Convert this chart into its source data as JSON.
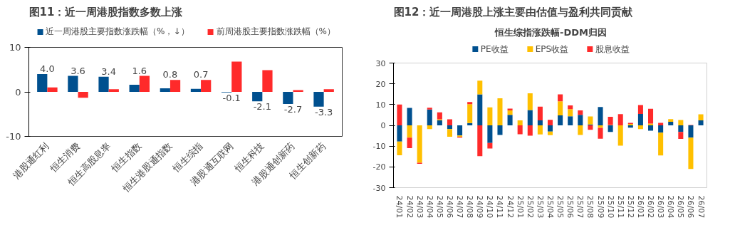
{
  "chart_data": [
    {
      "type": "bar",
      "title": "图11：近一周港股指数多数上涨",
      "categories": [
        "港股通红利",
        "恒生消费",
        "恒生高股息率",
        "恒生指数",
        "恒生港股通指数",
        "恒生综指",
        "港股通互联网",
        "恒生科技",
        "港股通创新药",
        "恒生创新药"
      ],
      "series": [
        {
          "name": "近一周港股主要指数涨跌幅（%，↓）",
          "color": "#00508f",
          "values": [
            4.0,
            3.6,
            3.4,
            1.6,
            0.8,
            0.7,
            -0.1,
            -2.1,
            -2.7,
            -3.3
          ],
          "value_labels": [
            "4.0",
            "3.6",
            "3.4",
            "1.6",
            "0.8",
            "0.7",
            "-0.1",
            "-2.1",
            "-2.7",
            "-3.3"
          ]
        },
        {
          "name": "前周港股主要指数涨跌幅（%）",
          "color": "#ff2a2a",
          "values": [
            1.0,
            -1.3,
            0.6,
            3.6,
            2.7,
            2.7,
            6.8,
            4.9,
            0.4,
            0.6
          ]
        }
      ],
      "ylim": [
        -10,
        10
      ],
      "yticks": [
        -10,
        0,
        10
      ],
      "grid": false,
      "legend": "top"
    },
    {
      "type": "bar",
      "stacked": true,
      "title": "图12：近一周港股上涨主要由估值与盈利共同贡献",
      "subtitle": "恒生综指涨跌幅-DDM归因",
      "categories": [
        "24/01",
        "24/02",
        "24/03",
        "24/04",
        "24/05",
        "24/06",
        "24/07",
        "24/08",
        "24/09",
        "24/10",
        "24/11",
        "24/12",
        "25/01",
        "25/02",
        "25/03",
        "25/04",
        "25/05",
        "25/06",
        "25/07",
        "25/08",
        "25/09",
        "25/10",
        "25/11",
        "25/12",
        "26/01",
        "26/02",
        "26/03",
        "26/04",
        "26/05",
        "26/06",
        "26/07"
      ],
      "series": [
        {
          "name": "PE收益",
          "color": "#00508f",
          "values": [
            -7.8,
            8.4,
            0,
            7.6,
            2.4,
            -1.8,
            -4.9,
            1.1,
            14.9,
            -8.5,
            -4.6,
            5.1,
            0,
            7.4,
            2.4,
            -3.0,
            4.8,
            4.4,
            5.1,
            0.4,
            8.8,
            -3.2,
            0,
            -1.1,
            5.5,
            -2.6,
            -3.5,
            1.7,
            -3.2,
            -5.9,
            2.4
          ]
        },
        {
          "name": "EPS收益",
          "color": "#ffc000",
          "values": [
            -6.6,
            -5.9,
            -18.0,
            -1.8,
            0.5,
            -3.7,
            -0.6,
            9.1,
            6.6,
            8.7,
            13.0,
            2.1,
            2.4,
            8.0,
            -4.4,
            -1.7,
            6.8,
            3.4,
            -4.6,
            3.9,
            -1.2,
            0.2,
            -9.8,
            0.7,
            -1.8,
            0.9,
            -11.0,
            1.3,
            2.6,
            -15.1,
            2.9
          ]
        },
        {
          "name": "股息收益",
          "color": "#ff2a2a",
          "values": [
            10.0,
            -5.1,
            -0.5,
            0.9,
            3.4,
            2.9,
            -0.4,
            1.0,
            -14.8,
            -2.6,
            0,
            0.9,
            -4.3,
            -5.0,
            6.6,
            2.7,
            3.3,
            1.8,
            2.1,
            -2.1,
            -5.2,
            3.9,
            5.4,
            0.5,
            4.3,
            7.1,
            1.2,
            0,
            -3.3,
            0.2,
            0
          ]
        }
      ],
      "ylim": [
        -30,
        30
      ],
      "yticks": [
        -30,
        -20,
        -10,
        0,
        10,
        20,
        30
      ],
      "grid": false,
      "legend": "top"
    }
  ]
}
